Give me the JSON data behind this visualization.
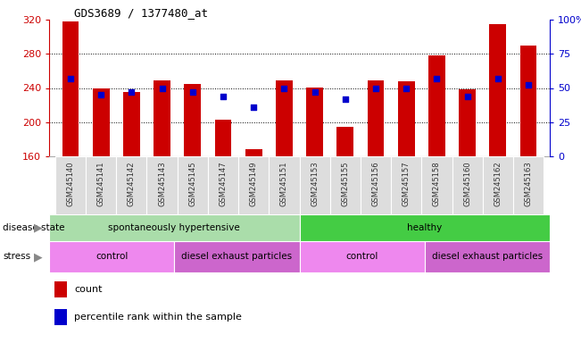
{
  "title": "GDS3689 / 1377480_at",
  "categories": [
    "GSM245140",
    "GSM245141",
    "GSM245142",
    "GSM245143",
    "GSM245145",
    "GSM245147",
    "GSM245149",
    "GSM245151",
    "GSM245153",
    "GSM245155",
    "GSM245156",
    "GSM245157",
    "GSM245158",
    "GSM245160",
    "GSM245162",
    "GSM245163"
  ],
  "counts": [
    318,
    240,
    235,
    249,
    245,
    203,
    168,
    249,
    241,
    194,
    249,
    248,
    278,
    238,
    315,
    290
  ],
  "percentiles": [
    57,
    45,
    47,
    50,
    47,
    44,
    36,
    50,
    47,
    42,
    50,
    50,
    57,
    44,
    57,
    52
  ],
  "ymin": 160,
  "ymax": 320,
  "yticks": [
    160,
    200,
    240,
    280,
    320
  ],
  "yright_ticks": [
    0,
    25,
    50,
    75,
    100
  ],
  "bar_color": "#cc0000",
  "dot_color": "#0000cc",
  "background_color": "#ffffff",
  "disease_state_groups": [
    {
      "label": "spontaneously hypertensive",
      "start": 0,
      "end": 8,
      "color": "#aaddaa"
    },
    {
      "label": "healthy",
      "start": 8,
      "end": 16,
      "color": "#44cc44"
    }
  ],
  "stress_groups": [
    {
      "label": "control",
      "start": 0,
      "end": 4,
      "color": "#ee88ee"
    },
    {
      "label": "diesel exhaust particles",
      "start": 4,
      "end": 8,
      "color": "#cc66cc"
    },
    {
      "label": "control",
      "start": 8,
      "end": 12,
      "color": "#ee88ee"
    },
    {
      "label": "diesel exhaust particles",
      "start": 12,
      "end": 16,
      "color": "#cc66cc"
    }
  ],
  "left_axis_color": "#cc0000",
  "right_axis_color": "#0000cc",
  "tick_label_bg": "#cccccc",
  "bar_width": 0.55
}
